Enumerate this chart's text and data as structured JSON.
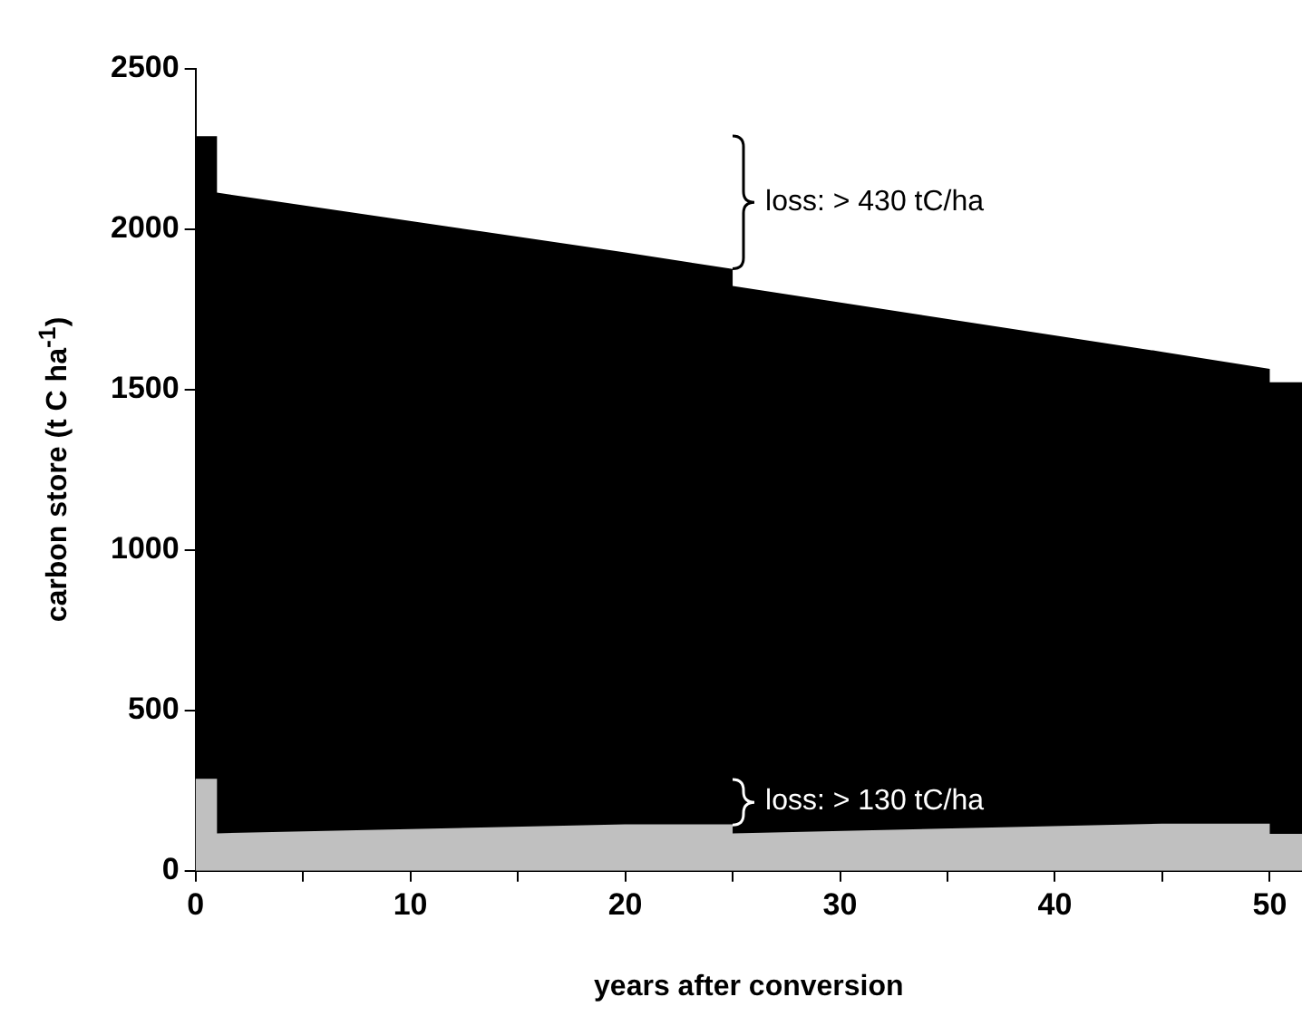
{
  "chart_data": {
    "type": "area",
    "xlabel": "years after conversion",
    "ylabel": "carbon store (t C ha$^{-1}$)",
    "x": [
      0,
      1,
      1,
      20,
      25,
      25,
      45,
      50,
      50,
      51.5
    ],
    "series": [
      {
        "color": "#000000",
        "values": [
          2290,
          2290,
          2114,
          1928,
          1876,
          1823,
          1618,
          1565,
          1523,
          1523
        ]
      },
      {
        "color": "#c0c0c0",
        "values": [
          287,
          287,
          117,
          145,
          145,
          117,
          147,
          147,
          115,
          115
        ]
      }
    ],
    "xlim": [
      0,
      51.5
    ],
    "xticks": [
      0,
      {
        "value": 5,
        "label": null
      },
      10,
      {
        "value": 15,
        "label": null
      },
      20,
      {
        "value": 25,
        "label": null
      },
      30,
      {
        "value": 35,
        "label": null
      },
      40,
      {
        "value": 45,
        "label": null
      },
      50
    ],
    "ylim": [
      0,
      2500
    ],
    "yticks": [
      0,
      500,
      1000,
      1500,
      2000,
      2500
    ],
    "annotations": [
      "loss: > 430 tC/ha",
      "loss: > 130 tC/ha"
    ]
  }
}
